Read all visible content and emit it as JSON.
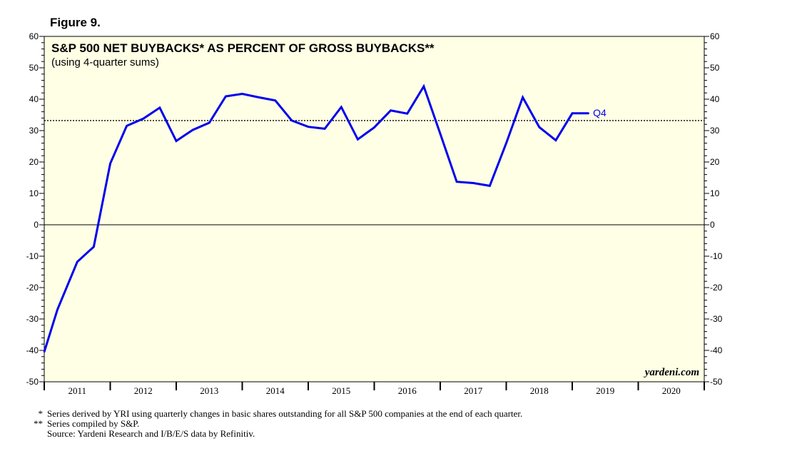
{
  "figure_label": "Figure 9.",
  "chart_data": {
    "type": "line",
    "title": "S&P 500 NET BUYBACKS* AS PERCENT OF GROSS BUYBACKS**",
    "subtitle": "(using 4-quarter sums)",
    "ylim": [
      -50,
      60
    ],
    "y_ticks": [
      -50,
      -40,
      -30,
      -20,
      -10,
      0,
      10,
      20,
      30,
      40,
      50,
      60
    ],
    "x_range": [
      2011,
      2021
    ],
    "x_tick_labels": [
      "2011",
      "2012",
      "2013",
      "2014",
      "2015",
      "2016",
      "2017",
      "2018",
      "2019",
      "2020"
    ],
    "reference_line": 33.2,
    "zero_line": 0,
    "last_point_label": "Q4",
    "watermark": "yardeni.com",
    "series": [
      {
        "name": "Net buybacks as % of gross buybacks",
        "color": "#0000ee",
        "x": [
          2011.0,
          2011.2,
          2011.5,
          2011.75,
          2012.0,
          2012.25,
          2012.5,
          2012.75,
          2013.0,
          2013.25,
          2013.5,
          2013.75,
          2014.0,
          2014.25,
          2014.5,
          2014.75,
          2015.0,
          2015.25,
          2015.5,
          2015.75,
          2016.0,
          2016.25,
          2016.5,
          2016.75,
          2017.0,
          2017.25,
          2017.5,
          2017.75,
          2018.0,
          2018.25,
          2018.5,
          2018.75,
          2019.0,
          2019.25
        ],
        "values": [
          -40.5,
          -27.0,
          -11.8,
          -7.0,
          19.5,
          31.5,
          33.8,
          37.3,
          26.7,
          30.2,
          32.5,
          40.9,
          41.7,
          40.6,
          39.6,
          33.2,
          31.2,
          30.6,
          37.5,
          27.2,
          31.0,
          36.4,
          35.4,
          44.1,
          29.0,
          13.7,
          13.3,
          12.4,
          26.0,
          40.6,
          31.1,
          26.9,
          35.5,
          35.5
        ]
      }
    ]
  },
  "footnotes": [
    {
      "mark": "*",
      "text": "Series derived by YRI using quarterly changes in basic shares outstanding for all S&P 500 companies at the end of each quarter."
    },
    {
      "mark": "**",
      "text": "Series compiled by S&P."
    },
    {
      "mark": "",
      "text": "Source: Yardeni Research and I/B/E/S data by Refinitiv."
    }
  ]
}
